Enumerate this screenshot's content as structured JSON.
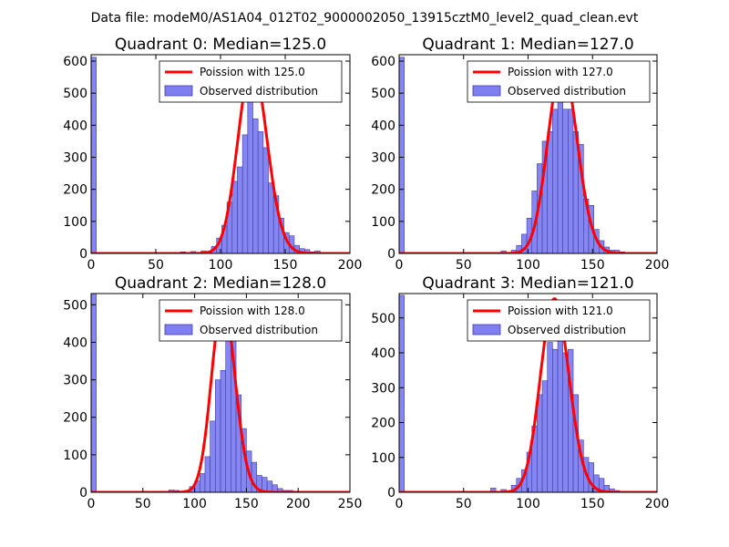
{
  "figure_title": "Data file: modeM0/AS1A04_012T02_9000002050_13915cztM0_level2_quad_clean.evt",
  "colors": {
    "bar_fill": "#7f7ff2",
    "bar_edge": "#3c3ca0",
    "poisson_line": "#ff0000"
  },
  "chart_data": [
    {
      "type": "bar",
      "title": "Quadrant 0: Median=125.0",
      "xlim": [
        0,
        200
      ],
      "ylim": [
        0,
        620
      ],
      "xticks": [
        0,
        50,
        100,
        150,
        200
      ],
      "yticks": [
        0,
        100,
        200,
        300,
        400,
        500,
        600
      ],
      "legend": {
        "placement": "top-right",
        "line_label": "Poission with 125.0",
        "bar_label": "Observed distribution"
      },
      "median": 125.0,
      "poisson_peak": 590,
      "bins": [
        [
          0,
          4,
          612
        ],
        [
          69,
          73,
          5
        ],
        [
          73,
          77,
          0
        ],
        [
          77,
          81,
          6
        ],
        [
          81,
          85,
          2
        ],
        [
          85,
          89,
          8
        ],
        [
          89,
          93,
          5
        ],
        [
          93,
          97,
          22
        ],
        [
          97,
          101,
          48
        ],
        [
          101,
          105,
          88
        ],
        [
          105,
          109,
          160
        ],
        [
          109,
          113,
          225
        ],
        [
          113,
          117,
          270
        ],
        [
          117,
          121,
          370
        ],
        [
          121,
          125,
          480
        ],
        [
          125,
          129,
          420
        ],
        [
          129,
          133,
          380
        ],
        [
          133,
          137,
          330
        ],
        [
          137,
          141,
          220
        ],
        [
          141,
          145,
          180
        ],
        [
          145,
          149,
          110
        ],
        [
          149,
          153,
          65
        ],
        [
          153,
          157,
          55
        ],
        [
          157,
          161,
          25
        ],
        [
          161,
          165,
          15
        ],
        [
          165,
          169,
          12
        ],
        [
          169,
          173,
          5
        ],
        [
          173,
          177,
          8
        ],
        [
          177,
          181,
          2
        ],
        [
          181,
          185,
          2
        ],
        [
          185,
          189,
          0
        ],
        [
          189,
          193,
          3
        ]
      ]
    },
    {
      "type": "bar",
      "title": "Quadrant 1: Median=127.0",
      "xlim": [
        0,
        200
      ],
      "ylim": [
        0,
        620
      ],
      "xticks": [
        0,
        50,
        100,
        150,
        200
      ],
      "yticks": [
        0,
        100,
        200,
        300,
        400,
        500,
        600
      ],
      "legend": {
        "placement": "top-right",
        "line_label": "Poission with 127.0",
        "bar_label": "Observed distribution"
      },
      "median": 127.0,
      "poisson_peak": 590,
      "bins": [
        [
          0,
          4,
          612
        ],
        [
          79,
          83,
          8
        ],
        [
          83,
          87,
          2
        ],
        [
          87,
          91,
          10
        ],
        [
          91,
          95,
          25
        ],
        [
          95,
          99,
          60
        ],
        [
          99,
          103,
          110
        ],
        [
          103,
          107,
          195
        ],
        [
          107,
          111,
          280
        ],
        [
          111,
          115,
          350
        ],
        [
          115,
          119,
          380
        ],
        [
          119,
          123,
          450
        ],
        [
          123,
          127,
          520
        ],
        [
          127,
          131,
          450
        ],
        [
          131,
          135,
          450
        ],
        [
          135,
          139,
          380
        ],
        [
          139,
          143,
          340
        ],
        [
          143,
          147,
          170
        ],
        [
          147,
          151,
          150
        ],
        [
          151,
          155,
          75
        ],
        [
          155,
          159,
          40
        ],
        [
          159,
          163,
          20
        ],
        [
          163,
          167,
          10
        ],
        [
          167,
          171,
          10
        ],
        [
          171,
          175,
          5
        ],
        [
          175,
          179,
          3
        ],
        [
          179,
          183,
          2
        ],
        [
          183,
          187,
          2
        ]
      ]
    },
    {
      "type": "bar",
      "title": "Quadrant 2: Median=128.0",
      "xlim": [
        0,
        250
      ],
      "ylim": [
        0,
        530
      ],
      "xticks": [
        0,
        50,
        100,
        150,
        200,
        250
      ],
      "yticks": [
        0,
        100,
        200,
        300,
        400,
        500
      ],
      "legend": {
        "placement": "top-right",
        "line_label": "Poission with 128.0",
        "bar_label": "Observed distribution"
      },
      "median": 128.0,
      "poisson_peak": 510,
      "bins": [
        [
          0,
          5,
          530
        ],
        [
          65,
          70,
          3
        ],
        [
          70,
          75,
          0
        ],
        [
          75,
          80,
          6
        ],
        [
          80,
          85,
          5
        ],
        [
          85,
          90,
          2
        ],
        [
          90,
          95,
          5
        ],
        [
          95,
          100,
          15
        ],
        [
          100,
          105,
          30
        ],
        [
          105,
          110,
          50
        ],
        [
          110,
          115,
          95
        ],
        [
          115,
          120,
          190
        ],
        [
          120,
          125,
          300
        ],
        [
          125,
          130,
          325
        ],
        [
          130,
          135,
          490
        ],
        [
          135,
          140,
          480
        ],
        [
          140,
          145,
          260
        ],
        [
          145,
          150,
          170
        ],
        [
          150,
          155,
          110
        ],
        [
          155,
          160,
          80
        ],
        [
          160,
          165,
          45
        ],
        [
          165,
          170,
          40
        ],
        [
          170,
          175,
          30
        ],
        [
          175,
          180,
          20
        ],
        [
          180,
          185,
          10
        ],
        [
          185,
          190,
          5
        ],
        [
          190,
          195,
          5
        ],
        [
          195,
          200,
          3
        ],
        [
          200,
          205,
          2
        ]
      ]
    },
    {
      "type": "bar",
      "title": "Quadrant 3: Median=121.0",
      "xlim": [
        0,
        200
      ],
      "ylim": [
        0,
        570
      ],
      "xticks": [
        0,
        50,
        100,
        150,
        200
      ],
      "yticks": [
        0,
        100,
        200,
        300,
        400,
        500
      ],
      "legend": {
        "placement": "top-right",
        "line_label": "Poission with 121.0",
        "bar_label": "Observed distribution"
      },
      "median": 121.0,
      "poisson_peak": 555,
      "bins": [
        [
          0,
          4,
          565
        ],
        [
          71,
          75,
          12
        ],
        [
          75,
          79,
          0
        ],
        [
          79,
          83,
          8
        ],
        [
          83,
          87,
          5
        ],
        [
          87,
          91,
          20
        ],
        [
          91,
          95,
          40
        ],
        [
          95,
          99,
          65
        ],
        [
          99,
          103,
          115
        ],
        [
          103,
          107,
          190
        ],
        [
          107,
          111,
          280
        ],
        [
          111,
          115,
          320
        ],
        [
          115,
          119,
          430
        ],
        [
          119,
          123,
          410
        ],
        [
          123,
          127,
          530
        ],
        [
          127,
          131,
          400
        ],
        [
          131,
          135,
          410
        ],
        [
          135,
          139,
          280
        ],
        [
          139,
          143,
          150
        ],
        [
          143,
          147,
          100
        ],
        [
          147,
          151,
          85
        ],
        [
          151,
          155,
          50
        ],
        [
          155,
          159,
          40
        ],
        [
          159,
          163,
          20
        ],
        [
          163,
          167,
          10
        ],
        [
          167,
          171,
          5
        ],
        [
          171,
          175,
          3
        ],
        [
          175,
          179,
          2
        ]
      ]
    }
  ]
}
